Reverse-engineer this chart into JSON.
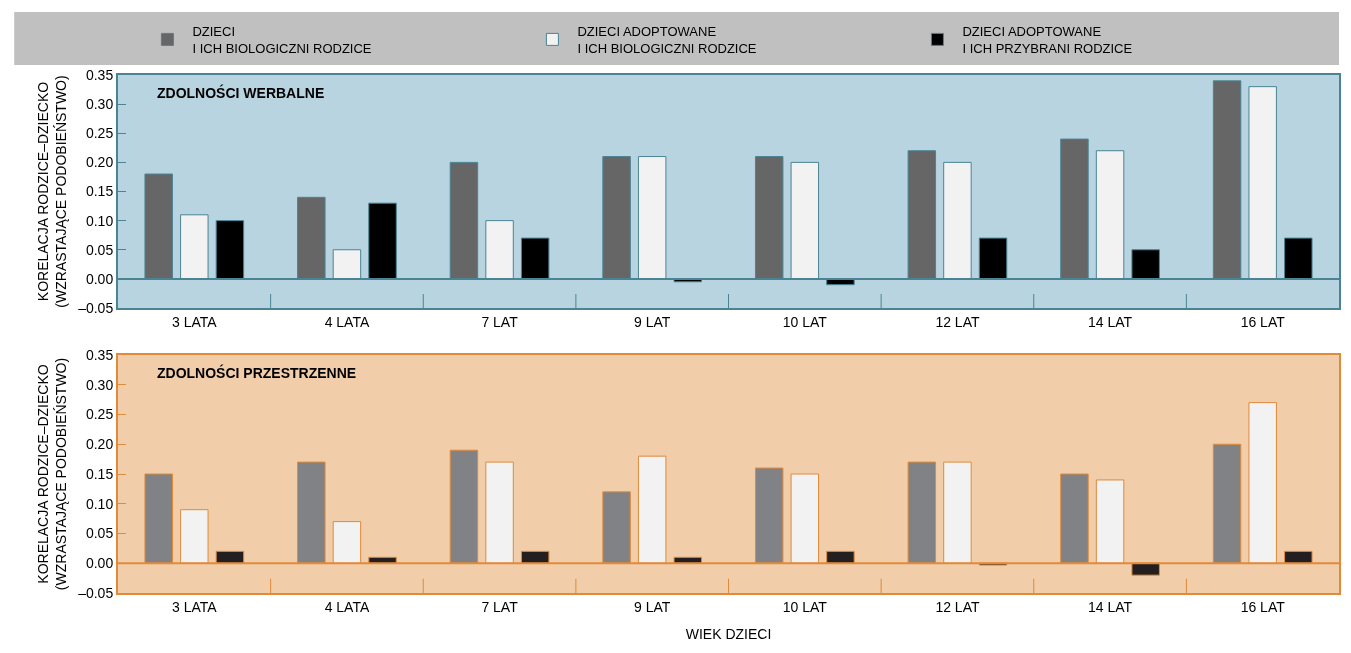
{
  "chart_data": [
    {
      "type": "bar",
      "title": "ZDOLNOŚCI WERBALNE",
      "ylabel": "KORELACJA RODZICE–DZIECKO\n(WZRASTAJĄCE PODOBIEŃSTWO)",
      "categories": [
        "3 LATA",
        "4 LATA",
        "7 LAT",
        "9 LAT",
        "10 LAT",
        "12 LAT",
        "14 LAT",
        "16 LAT"
      ],
      "series": [
        {
          "name": "DZIECI\nI ICH BIOLOGICZNI RODZICE",
          "color": "#666666",
          "values": [
            0.18,
            0.14,
            0.2,
            0.21,
            0.21,
            0.22,
            0.24,
            0.34
          ]
        },
        {
          "name": "DZIECI ADOPTOWANE\nI ICH BIOLOGICZNI RODZICE",
          "color": "#f2f2f2",
          "values": [
            0.11,
            0.05,
            0.1,
            0.21,
            0.2,
            0.2,
            0.22,
            0.33
          ]
        },
        {
          "name": "DZIECI ADOPTOWANE\nI ICH PRZYBRANI RODZICE",
          "color": "#000000",
          "values": [
            0.1,
            0.13,
            0.07,
            -0.005,
            -0.01,
            0.07,
            0.05,
            0.07
          ]
        }
      ],
      "ylim": [
        -0.05,
        0.35
      ],
      "yticks": [
        {
          "value": -0.05,
          "label": "–0.05"
        },
        {
          "value": 0,
          "label": "0.00"
        },
        {
          "value": 0.05,
          "label": "0.05"
        },
        {
          "value": 0.1,
          "label": "0.10"
        },
        {
          "value": 0.15,
          "label": "0.15"
        },
        {
          "value": 0.2,
          "label": "0.20"
        },
        {
          "value": 0.25,
          "label": "0.25"
        },
        {
          "value": 0.3,
          "label": "0.30"
        },
        {
          "value": 0.35,
          "label": "0.35"
        }
      ],
      "ref_lines": [
        {
          "axis": "y",
          "value": 0,
          "color": "#4a8494"
        }
      ],
      "grid": false,
      "legend": "top"
    },
    {
      "type": "bar",
      "title": "ZDOLNOŚCI PRZESTRZENNE",
      "ylabel": "KORELACJA RODZICE–DZIECKO\n(WZRASTAJĄCE PODOBIEŃSTWO)",
      "xlabel": "WIEK DZIECI",
      "categories": [
        "3 LATA",
        "4 LATA",
        "7 LAT",
        "9 LAT",
        "10 LAT",
        "12 LAT",
        "14 LAT",
        "16 LAT"
      ],
      "series": [
        {
          "color": "#808285",
          "values": [
            0.15,
            0.17,
            0.19,
            0.12,
            0.16,
            0.17,
            0.15,
            0.2
          ]
        },
        {
          "color": "#f2f2f2",
          "values": [
            0.09,
            0.07,
            0.17,
            0.18,
            0.15,
            0.17,
            0.14,
            0.27
          ]
        },
        {
          "color": "#231f20",
          "values": [
            0.02,
            0.01,
            0.02,
            0.01,
            0.02,
            -0.003,
            -0.02,
            0.02
          ]
        }
      ],
      "ylim": [
        -0.05,
        0.35
      ],
      "yticks": [
        {
          "value": -0.05,
          "label": "–0.05"
        },
        {
          "value": 0,
          "label": "0.00"
        },
        {
          "value": 0.05,
          "label": "0.05"
        },
        {
          "value": 0.1,
          "label": "0.10"
        },
        {
          "value": 0.15,
          "label": "0.15"
        },
        {
          "value": 0.2,
          "label": "0.20"
        },
        {
          "value": 0.25,
          "label": "0.25"
        },
        {
          "value": 0.3,
          "label": "0.30"
        },
        {
          "value": 0.35,
          "label": "0.35"
        }
      ],
      "ref_lines": [
        {
          "axis": "y",
          "value": 0,
          "color": "#e08a3a"
        }
      ],
      "grid": false,
      "legend": false
    }
  ]
}
